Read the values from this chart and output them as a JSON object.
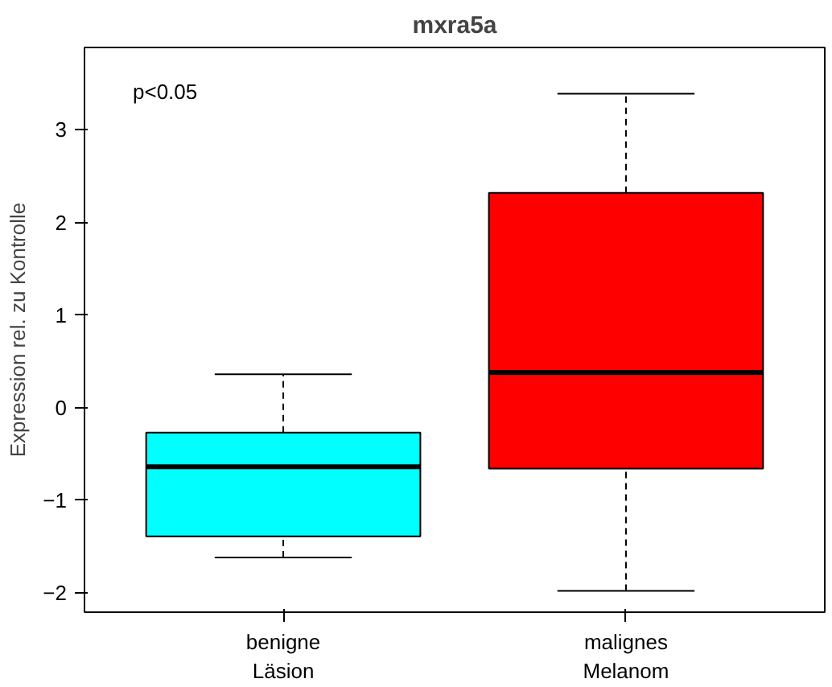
{
  "chart_data": {
    "type": "box",
    "title": "mxra5a",
    "ylabel": "Expression rel. zu Kontrolle",
    "categories": [
      "benigne\nLäsion",
      "malignes\nMelanom"
    ],
    "colors": [
      "#00ffff",
      "#ff0000"
    ],
    "boxes": [
      {
        "low": -1.62,
        "q1": -1.39,
        "median": -0.64,
        "q3": -0.27,
        "high": 0.36
      },
      {
        "low": -1.98,
        "q1": -0.66,
        "median": 0.38,
        "q3": 2.32,
        "high": 3.39
      }
    ],
    "ylim": [
      -2.21,
      3.89
    ],
    "yticks": [
      -2,
      -1,
      0,
      1,
      2,
      3
    ],
    "grid": false,
    "annotations": [
      "p<0.05"
    ]
  }
}
